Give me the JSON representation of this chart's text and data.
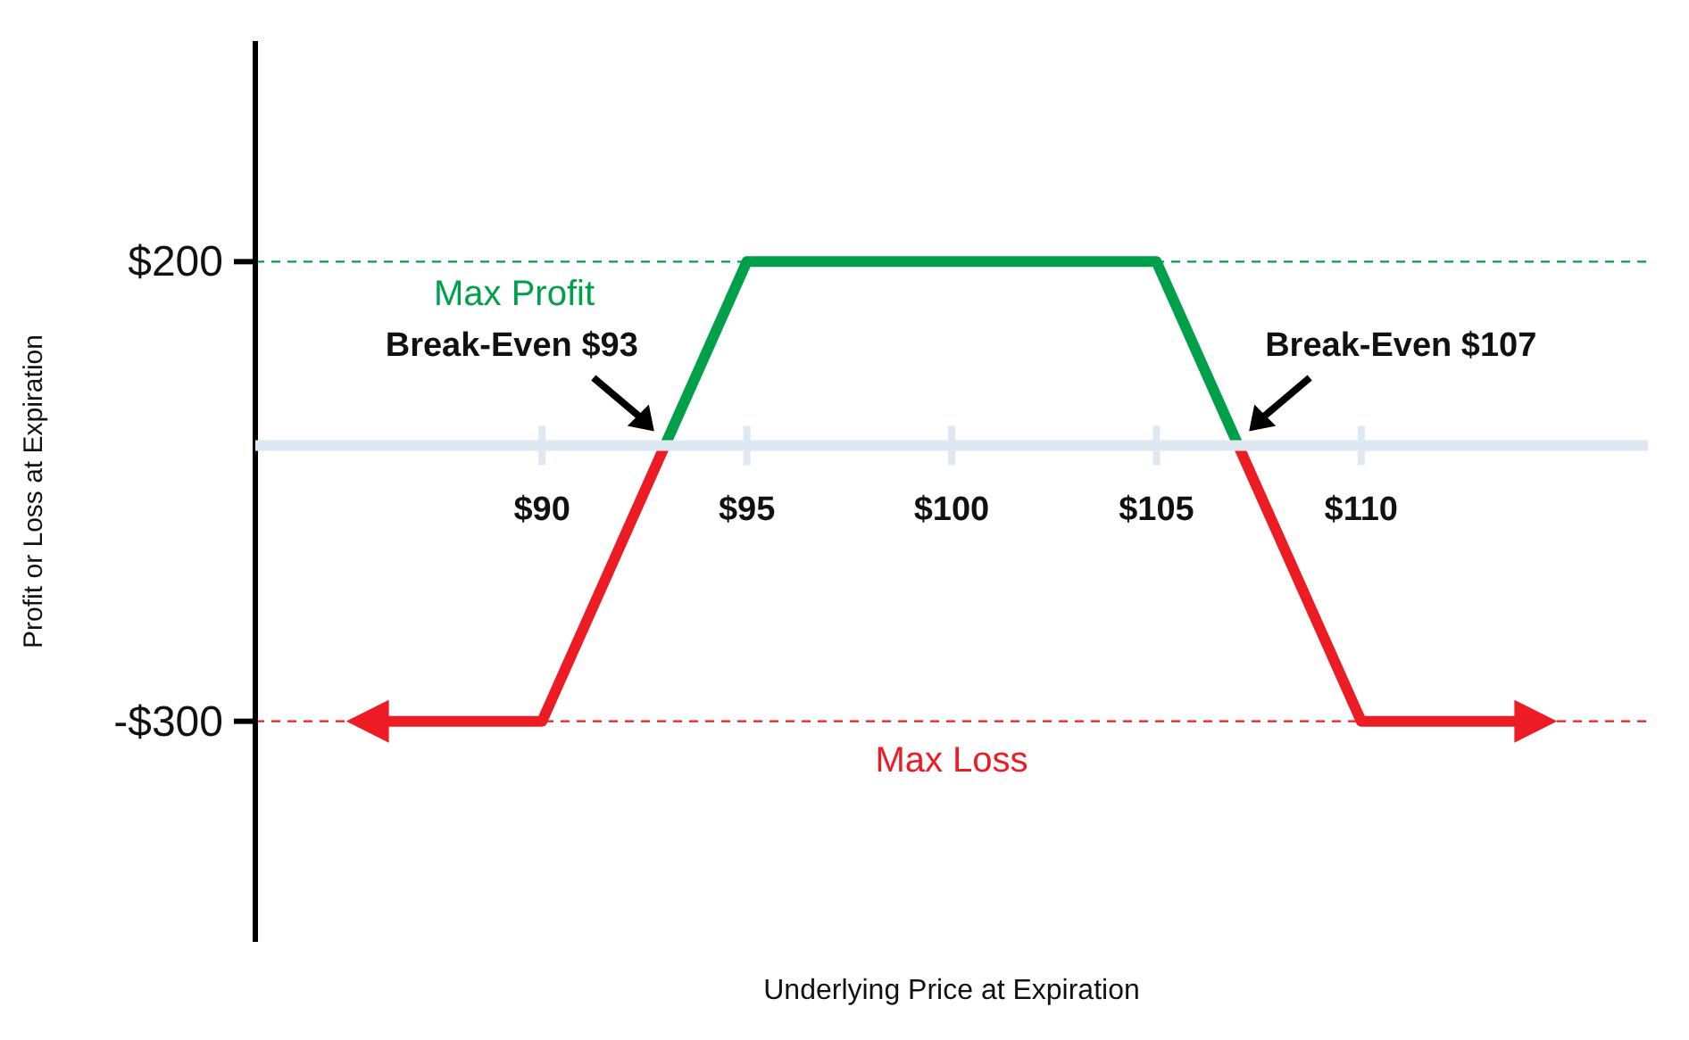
{
  "chart_data": {
    "type": "line",
    "xlabel": "Underlying Price at Expiration",
    "ylabel": "Profit or Loss at Expiration",
    "xlim": [
      83,
      117
    ],
    "ylim": [
      -540,
      440
    ],
    "xticks": [
      {
        "value": 90,
        "label": "$90"
      },
      {
        "value": 95,
        "label": "$95"
      },
      {
        "value": 100,
        "label": "$100"
      },
      {
        "value": 105,
        "label": "$105"
      },
      {
        "value": 110,
        "label": "$110"
      }
    ],
    "yticks": [
      {
        "value": 200,
        "label": "$200"
      },
      {
        "value": -300,
        "label": "-$300"
      }
    ],
    "series": [
      {
        "color": "#ed1c24",
        "x": [
          86,
          90,
          93
        ],
        "values": [
          -300,
          -300,
          0
        ]
      },
      {
        "color": "#00a04a",
        "x": [
          93,
          95,
          105,
          107
        ],
        "values": [
          0,
          200,
          200,
          0
        ]
      },
      {
        "color": "#ed1c24",
        "x": [
          107,
          110,
          114
        ],
        "values": [
          0,
          -300,
          -300
        ]
      }
    ],
    "ref_lines": [
      {
        "axis": "y",
        "value": 200,
        "label": "Max Profit",
        "color": "#00a04a",
        "line_style": "dashed"
      },
      {
        "axis": "y",
        "value": -300,
        "label": "Max Loss",
        "color": "#ed1c24",
        "line_style": "dashed"
      }
    ],
    "annotations": [
      {
        "text": "Break-Even $93",
        "x": 93,
        "y": 0
      },
      {
        "text": "Break-Even $107",
        "x": 107,
        "y": 0
      }
    ],
    "marker": "none",
    "line_style": "solid",
    "grid": false
  }
}
